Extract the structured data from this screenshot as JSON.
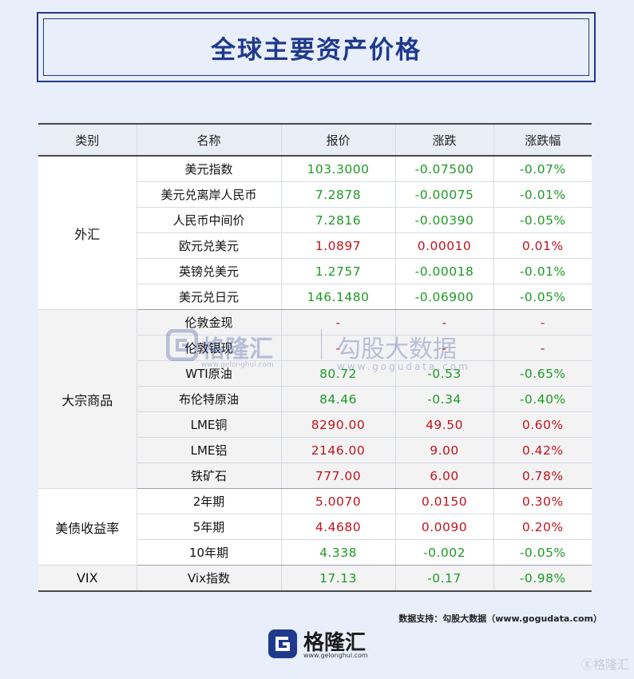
{
  "title": "全球主要资产价格",
  "table": {
    "headers": [
      "类别",
      "名称",
      "报价",
      "涨跌",
      "涨跌幅"
    ],
    "groups": [
      {
        "category": "外汇",
        "rows": [
          {
            "name": "美元指数",
            "price": "103.3000",
            "change": "-0.07500",
            "pct": "-0.07%",
            "dir": "down"
          },
          {
            "name": "美元兑离岸人民币",
            "price": "7.2878",
            "change": "-0.00075",
            "pct": "-0.01%",
            "dir": "down"
          },
          {
            "name": "人民币中间价",
            "price": "7.2816",
            "change": "-0.00390",
            "pct": "-0.05%",
            "dir": "down"
          },
          {
            "name": "欧元兑美元",
            "price": "1.0897",
            "change": "0.00010",
            "pct": "0.01%",
            "dir": "up"
          },
          {
            "name": "英镑兑美元",
            "price": "1.2757",
            "change": "-0.00018",
            "pct": "-0.01%",
            "dir": "down"
          },
          {
            "name": "美元兑日元",
            "price": "146.1480",
            "change": "-0.06900",
            "pct": "-0.05%",
            "dir": "down"
          }
        ]
      },
      {
        "category": "大宗商品",
        "rows": [
          {
            "name": "伦敦金现",
            "price": "-",
            "change": "-",
            "pct": "-",
            "dir": "flat"
          },
          {
            "name": "伦敦银现",
            "price": "-",
            "change": "-",
            "pct": "-",
            "dir": "flat"
          },
          {
            "name": "WTI原油",
            "price": "80.72",
            "change": "-0.53",
            "pct": "-0.65%",
            "dir": "down"
          },
          {
            "name": "布伦特原油",
            "price": "84.46",
            "change": "-0.34",
            "pct": "-0.40%",
            "dir": "down"
          },
          {
            "name": "LME铜",
            "price": "8290.00",
            "change": "49.50",
            "pct": "0.60%",
            "dir": "up"
          },
          {
            "name": "LME铝",
            "price": "2146.00",
            "change": "9.00",
            "pct": "0.42%",
            "dir": "up"
          },
          {
            "name": "铁矿石",
            "price": "777.00",
            "change": "6.00",
            "pct": "0.78%",
            "dir": "up"
          }
        ]
      },
      {
        "category": "美债收益率",
        "rows": [
          {
            "name": "2年期",
            "price": "5.0070",
            "change": "0.0150",
            "pct": "0.30%",
            "dir": "up"
          },
          {
            "name": "5年期",
            "price": "4.4680",
            "change": "0.0090",
            "pct": "0.20%",
            "dir": "up"
          },
          {
            "name": "10年期",
            "price": "4.338",
            "change": "-0.002",
            "pct": "-0.05%",
            "dir": "down"
          }
        ]
      },
      {
        "category": "VIX",
        "rows": [
          {
            "name": "Vix指数",
            "price": "17.13",
            "change": "-0.17",
            "pct": "-0.98%",
            "dir": "down"
          }
        ]
      }
    ]
  },
  "watermark": {
    "brand": "格隆汇",
    "brand_url": "www.gelonghui.com",
    "partner": "勾股大数据",
    "partner_url": "www.gogudata.com"
  },
  "source_note": "数据支持：勾股大数据（www.gogudata.com）",
  "footer": {
    "brand": "格隆汇",
    "url": "www.gelonghui.com"
  },
  "corner_mark": "格隆汇",
  "colors": {
    "up": "#c0141d",
    "down": "#1e9a25",
    "accent": "#1f3a8c"
  }
}
